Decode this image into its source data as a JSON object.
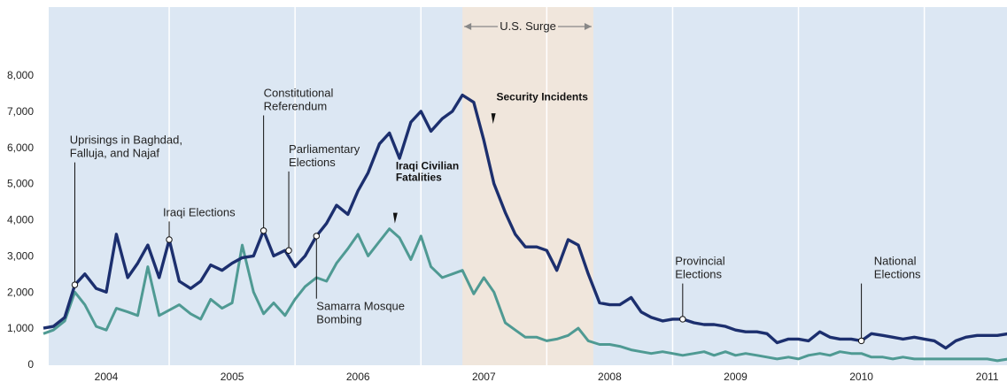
{
  "chart_data": {
    "type": "line",
    "x_range": [
      2003.5,
      2011.45
    ],
    "ylim": [
      0,
      8000
    ],
    "yticks": [
      "0",
      "1,000",
      "2,000",
      "3,000",
      "4,000",
      "5,000",
      "6,000",
      "7,000",
      "8,000"
    ],
    "ytick_values": [
      0,
      1000,
      2000,
      3000,
      4000,
      5000,
      6000,
      7000,
      8000
    ],
    "xticks": [
      "2004",
      "2005",
      "2006",
      "2007",
      "2008",
      "2009",
      "2010",
      "2011"
    ],
    "xtick_values": [
      2004,
      2005,
      2006,
      2007,
      2008,
      2009,
      2010,
      2011
    ],
    "grid": true,
    "colors": {
      "background": "#dce7f3",
      "surge_band": "#f0e6dc",
      "security": "#1c2f6e",
      "civilian": "#4f9a93"
    },
    "surge": {
      "label": "U.S. Surge",
      "start": 2006.83,
      "end": 2007.87
    },
    "series": [
      {
        "name": "Security Incidents",
        "color": "#1c2f6e",
        "x": [
          2003.5,
          2003.58,
          2003.67,
          2003.75,
          2003.83,
          2003.92,
          2004.0,
          2004.08,
          2004.17,
          2004.25,
          2004.33,
          2004.42,
          2004.5,
          2004.58,
          2004.67,
          2004.75,
          2004.83,
          2004.92,
          2005.0,
          2005.08,
          2005.17,
          2005.25,
          2005.33,
          2005.42,
          2005.5,
          2005.58,
          2005.67,
          2005.75,
          2005.83,
          2005.92,
          2006.0,
          2006.08,
          2006.17,
          2006.25,
          2006.33,
          2006.42,
          2006.5,
          2006.58,
          2006.67,
          2006.75,
          2006.83,
          2006.92,
          2007.0,
          2007.08,
          2007.17,
          2007.25,
          2007.33,
          2007.42,
          2007.5,
          2007.58,
          2007.67,
          2007.75,
          2007.83,
          2007.92,
          2008.0,
          2008.08,
          2008.17,
          2008.25,
          2008.33,
          2008.42,
          2008.5,
          2008.58,
          2008.67,
          2008.75,
          2008.83,
          2008.92,
          2009.0,
          2009.08,
          2009.17,
          2009.25,
          2009.33,
          2009.42,
          2009.5,
          2009.58,
          2009.67,
          2009.75,
          2009.83,
          2009.92,
          2010.0,
          2010.08,
          2010.17,
          2010.25,
          2010.33,
          2010.42,
          2010.5,
          2010.58,
          2010.67,
          2010.75,
          2010.83,
          2010.92,
          2011.0,
          2011.08,
          2011.17,
          2011.25,
          2011.33,
          2011.42
        ],
        "values": [
          1000,
          1050,
          1300,
          2200,
          2500,
          2100,
          2000,
          3600,
          2400,
          2800,
          3300,
          2400,
          3450,
          2300,
          2100,
          2300,
          2750,
          2600,
          2800,
          2950,
          3000,
          3700,
          3000,
          3150,
          2700,
          3000,
          3550,
          3900,
          4400,
          4150,
          4800,
          5300,
          6100,
          6400,
          5700,
          6700,
          7000,
          6450,
          6800,
          7000,
          7450,
          7250,
          6200,
          5000,
          4200,
          3600,
          3250,
          3250,
          3150,
          2600,
          3450,
          3300,
          2500,
          1700,
          1650,
          1650,
          1850,
          1450,
          1300,
          1200,
          1250,
          1250,
          1150,
          1100,
          1100,
          1050,
          950,
          900,
          900,
          850,
          600,
          700,
          700,
          650,
          900,
          750,
          700,
          700,
          650,
          850,
          800,
          750,
          700,
          750,
          700,
          650,
          450,
          650,
          750,
          800,
          800,
          800,
          850,
          900,
          850,
          500
        ]
      },
      {
        "name": "Iraqi Civilian Fatalities",
        "color": "#4f9a93",
        "x": [
          2003.5,
          2003.58,
          2003.67,
          2003.75,
          2003.83,
          2003.92,
          2004.0,
          2004.08,
          2004.17,
          2004.25,
          2004.33,
          2004.42,
          2004.5,
          2004.58,
          2004.67,
          2004.75,
          2004.83,
          2004.92,
          2005.0,
          2005.08,
          2005.17,
          2005.25,
          2005.33,
          2005.42,
          2005.5,
          2005.58,
          2005.67,
          2005.75,
          2005.83,
          2005.92,
          2006.0,
          2006.08,
          2006.17,
          2006.25,
          2006.33,
          2006.42,
          2006.5,
          2006.58,
          2006.67,
          2006.75,
          2006.83,
          2006.92,
          2007.0,
          2007.08,
          2007.17,
          2007.25,
          2007.33,
          2007.42,
          2007.5,
          2007.58,
          2007.67,
          2007.75,
          2007.83,
          2007.92,
          2008.0,
          2008.08,
          2008.17,
          2008.25,
          2008.33,
          2008.42,
          2008.5,
          2008.58,
          2008.67,
          2008.75,
          2008.83,
          2008.92,
          2009.0,
          2009.08,
          2009.17,
          2009.25,
          2009.33,
          2009.42,
          2009.5,
          2009.58,
          2009.67,
          2009.75,
          2009.83,
          2009.92,
          2010.0,
          2010.08,
          2010.17,
          2010.25,
          2010.33,
          2010.42,
          2010.5,
          2010.58,
          2010.67,
          2010.75,
          2010.83,
          2010.92,
          2011.0,
          2011.08,
          2011.17,
          2011.25,
          2011.33,
          2011.42
        ],
        "values": [
          850,
          950,
          1200,
          2000,
          1650,
          1050,
          950,
          1550,
          1450,
          1350,
          2700,
          1350,
          1500,
          1650,
          1400,
          1250,
          1800,
          1550,
          1700,
          3300,
          2000,
          1400,
          1700,
          1350,
          1800,
          2150,
          2400,
          2300,
          2800,
          3200,
          3600,
          3000,
          3400,
          3750,
          3500,
          2900,
          3550,
          2700,
          2400,
          2500,
          2600,
          1950,
          2400,
          2000,
          1150,
          950,
          750,
          750,
          650,
          700,
          800,
          1000,
          650,
          550,
          550,
          500,
          400,
          350,
          300,
          350,
          300,
          250,
          300,
          350,
          250,
          350,
          250,
          300,
          250,
          200,
          150,
          200,
          150,
          250,
          300,
          250,
          350,
          300,
          300,
          200,
          200,
          150,
          200,
          150,
          150,
          150,
          150,
          150,
          150,
          150,
          150,
          100,
          150,
          150,
          150,
          150
        ]
      }
    ],
    "series_labels": [
      {
        "lines": [
          "Security Incidents"
        ],
        "x": 2007.1,
        "y": 7300,
        "arrow_to": [
          2007.08,
          6650
        ]
      },
      {
        "lines": [
          "Iraqi Civilian",
          "Fatalities"
        ],
        "x": 2006.3,
        "y": 5400,
        "arrow_to": [
          2006.3,
          3900
        ]
      }
    ],
    "annotations": [
      {
        "lines": [
          "Uprisings in Baghdad,",
          "Falluja, and Najaf"
        ],
        "x": 2003.71,
        "y": 6100,
        "point": [
          2003.75,
          2200
        ]
      },
      {
        "lines": [
          "Iraqi Elections"
        ],
        "x": 2004.45,
        "y": 4100,
        "point": [
          2004.5,
          3450
        ]
      },
      {
        "lines": [
          "Constitutional",
          "Referendum"
        ],
        "x": 2005.25,
        "y": 7400,
        "point": [
          2005.25,
          3700
        ]
      },
      {
        "lines": [
          "Parliamentary",
          "Elections"
        ],
        "x": 2005.45,
        "y": 5850,
        "point": [
          2005.45,
          3150
        ]
      },
      {
        "lines": [
          "Samarra Mosque",
          "Bombing"
        ],
        "x": 2005.67,
        "y": 1500,
        "point": [
          2005.67,
          3550
        ]
      },
      {
        "lines": [
          "Provincial",
          "Elections"
        ],
        "x": 2008.52,
        "y": 2750,
        "point": [
          2008.58,
          1250
        ]
      },
      {
        "lines": [
          "National",
          "Elections"
        ],
        "x": 2010.1,
        "y": 2750,
        "point": [
          2010.0,
          650
        ]
      }
    ]
  }
}
